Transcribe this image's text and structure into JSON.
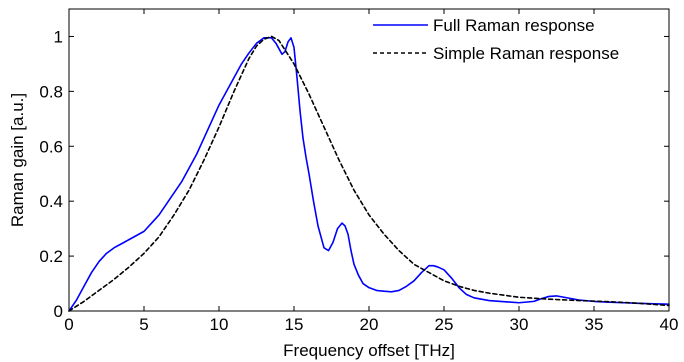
{
  "chart_data": {
    "type": "line",
    "title": "",
    "xlabel": "Frequency offset [THz]",
    "ylabel": "Raman gain [a.u.]",
    "xlim": [
      0,
      40
    ],
    "ylim": [
      0,
      1.1
    ],
    "xticks": [
      0,
      5,
      10,
      15,
      20,
      25,
      30,
      35,
      40
    ],
    "yticks": [
      0,
      0.2,
      0.4,
      0.6,
      0.8,
      1
    ],
    "xtick_labels": [
      "0",
      "5",
      "10",
      "15",
      "20",
      "25",
      "30",
      "35",
      "40"
    ],
    "ytick_labels": [
      "0",
      "0.2",
      "0.4",
      "0.6",
      "0.8",
      "1"
    ],
    "grid": false,
    "legend_position": "top-right",
    "series": [
      {
        "name": "Full Raman response",
        "color": "#0000ff",
        "style": "solid",
        "x": [
          0,
          0.5,
          1,
          1.5,
          2,
          2.5,
          3,
          3.5,
          4,
          4.5,
          5,
          5.5,
          6,
          6.5,
          7,
          7.5,
          8,
          8.5,
          9,
          9.5,
          10,
          10.5,
          11,
          11.5,
          12,
          12.5,
          13,
          13.5,
          13.8,
          14,
          14.2,
          14.4,
          14.6,
          14.8,
          15,
          15.2,
          15.4,
          15.6,
          15.8,
          16,
          16.3,
          16.6,
          17,
          17.3,
          17.6,
          17.9,
          18.2,
          18.4,
          18.6,
          18.8,
          19,
          19.3,
          19.6,
          20,
          20.5,
          21,
          21.5,
          22,
          22.5,
          23,
          23.5,
          24,
          24.3,
          24.6,
          25,
          25.5,
          26,
          26.5,
          27,
          28,
          29,
          30,
          31,
          31.5,
          32,
          32.5,
          33,
          33.5,
          34,
          35,
          36,
          37,
          38,
          39,
          40
        ],
        "y": [
          0,
          0.04,
          0.09,
          0.14,
          0.18,
          0.21,
          0.23,
          0.245,
          0.26,
          0.275,
          0.29,
          0.32,
          0.35,
          0.39,
          0.43,
          0.47,
          0.52,
          0.57,
          0.63,
          0.69,
          0.75,
          0.8,
          0.85,
          0.9,
          0.94,
          0.975,
          0.995,
          0.995,
          0.975,
          0.955,
          0.935,
          0.945,
          0.98,
          0.995,
          0.96,
          0.85,
          0.73,
          0.63,
          0.56,
          0.5,
          0.4,
          0.31,
          0.23,
          0.22,
          0.25,
          0.3,
          0.32,
          0.31,
          0.28,
          0.22,
          0.17,
          0.13,
          0.1,
          0.085,
          0.075,
          0.072,
          0.07,
          0.075,
          0.09,
          0.11,
          0.14,
          0.165,
          0.165,
          0.16,
          0.15,
          0.12,
          0.085,
          0.06,
          0.048,
          0.038,
          0.034,
          0.03,
          0.035,
          0.045,
          0.053,
          0.055,
          0.05,
          0.045,
          0.04,
          0.035,
          0.032,
          0.03,
          0.028,
          0.026,
          0.025
        ]
      },
      {
        "name": "Simple Raman response",
        "color": "#000000",
        "style": "dashed",
        "x": [
          0,
          1,
          2,
          3,
          4,
          5,
          6,
          7,
          8,
          9,
          10,
          11,
          12,
          12.5,
          13,
          13.5,
          14,
          15,
          16,
          17,
          18,
          19,
          20,
          21,
          22,
          23,
          24,
          25,
          26,
          27,
          28,
          30,
          32,
          34,
          36,
          38,
          40
        ],
        "y": [
          0,
          0.035,
          0.075,
          0.115,
          0.16,
          0.21,
          0.27,
          0.35,
          0.44,
          0.55,
          0.67,
          0.8,
          0.92,
          0.965,
          0.99,
          1.0,
          0.985,
          0.9,
          0.79,
          0.67,
          0.55,
          0.44,
          0.35,
          0.28,
          0.22,
          0.17,
          0.14,
          0.11,
          0.09,
          0.075,
          0.065,
          0.05,
          0.043,
          0.038,
          0.034,
          0.028,
          0.02
        ]
      }
    ]
  }
}
